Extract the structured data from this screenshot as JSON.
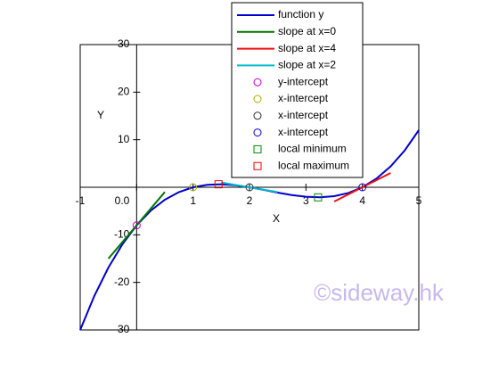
{
  "chart_data": {
    "type": "line",
    "x_label": "X",
    "y_label": "Y",
    "watermark": "©sideway.hk",
    "xlim": [
      -1,
      5
    ],
    "ylim": [
      -30,
      30
    ],
    "xticks": [
      -1,
      {
        "value": 0,
        "label": "0.0"
      },
      1,
      2,
      3,
      4,
      5
    ],
    "yticks": [
      -30,
      -20,
      -10,
      10,
      20,
      30
    ],
    "grid": false,
    "legend": "top",
    "series": [
      {
        "name": "function y",
        "color": "#0000cc",
        "kind": "line",
        "x": [
          -1,
          -0.75,
          -0.5,
          -0.25,
          0,
          0.25,
          0.5,
          0.75,
          1,
          1.25,
          1.5,
          1.75,
          2,
          2.25,
          2.5,
          2.75,
          3,
          3.25,
          3.5,
          3.75,
          4,
          4.25,
          4.5,
          4.75,
          5
        ],
        "values": [
          -30,
          -22.859,
          -16.875,
          -11.953,
          -8,
          -4.922,
          -2.625,
          -1.016,
          0,
          0.516,
          0.625,
          0.422,
          0,
          -0.547,
          -1.125,
          -1.641,
          -2,
          -2.109,
          -1.875,
          -1.203,
          0,
          1.828,
          4.375,
          7.734,
          12
        ]
      },
      {
        "name": "slope at x=0",
        "color": "#007700",
        "kind": "line",
        "x": [
          -0.5,
          0.5
        ],
        "values": [
          -15,
          -1
        ]
      },
      {
        "name": "slope at x=4",
        "color": "#ee1111",
        "kind": "line",
        "x": [
          3.5,
          4.5
        ],
        "values": [
          -3,
          3
        ]
      },
      {
        "name": "slope at x=2",
        "color": "#00bbcc",
        "kind": "line",
        "x": [
          1.5,
          2.5
        ],
        "values": [
          1,
          -1
        ]
      },
      {
        "name": "y-intercept",
        "color": "#cc00cc",
        "kind": "circle",
        "x": [
          0
        ],
        "values": [
          -8
        ]
      },
      {
        "name": "x-intercept",
        "color": "#aaaa00",
        "kind": "circle",
        "x": [
          1
        ],
        "values": [
          0
        ]
      },
      {
        "name": "x-intercept",
        "color": "#333333",
        "kind": "circle",
        "x": [
          2
        ],
        "values": [
          0
        ]
      },
      {
        "name": "x-intercept",
        "color": "#0000dd",
        "kind": "circle",
        "x": [
          4
        ],
        "values": [
          0
        ]
      },
      {
        "name": "local minimum",
        "color": "#008800",
        "kind": "square",
        "x": [
          3.215
        ],
        "values": [
          -2.113
        ]
      },
      {
        "name": "local maximum",
        "color": "#ee0000",
        "kind": "square",
        "x": [
          1.451
        ],
        "values": [
          0.631
        ]
      }
    ]
  }
}
